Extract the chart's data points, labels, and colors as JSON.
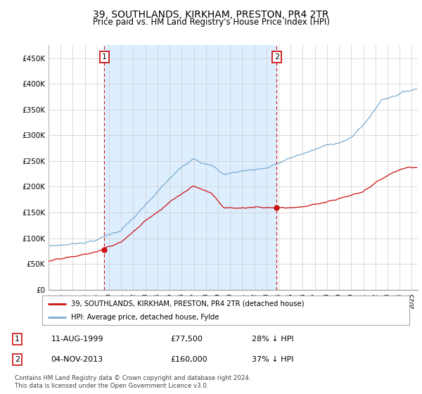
{
  "title": "39, SOUTHLANDS, KIRKHAM, PRESTON, PR4 2TR",
  "subtitle": "Price paid vs. HM Land Registry's House Price Index (HPI)",
  "ylabel_ticks": [
    "£0",
    "£50K",
    "£100K",
    "£150K",
    "£200K",
    "£250K",
    "£300K",
    "£350K",
    "£400K",
    "£450K"
  ],
  "ytick_values": [
    0,
    50000,
    100000,
    150000,
    200000,
    250000,
    300000,
    350000,
    400000,
    450000
  ],
  "ylim": [
    0,
    475000
  ],
  "xlim_start": 1995.0,
  "xlim_end": 2025.5,
  "hpi_color": "#7aabcf",
  "price_color": "#cc1111",
  "annotation_color": "#cc1111",
  "dashed_color": "#cc1111",
  "shade_color": "#ddeeff",
  "transaction1_date": 1999.61,
  "transaction1_price": 77500,
  "transaction2_date": 2013.84,
  "transaction2_price": 160000,
  "legend_line1": "39, SOUTHLANDS, KIRKHAM, PRESTON, PR4 2TR (detached house)",
  "legend_line2": "HPI: Average price, detached house, Fylde",
  "table_row1": [
    "1",
    "11-AUG-1999",
    "£77,500",
    "28% ↓ HPI"
  ],
  "table_row2": [
    "2",
    "04-NOV-2013",
    "£160,000",
    "37% ↓ HPI"
  ],
  "footer": "Contains HM Land Registry data © Crown copyright and database right 2024.\nThis data is licensed under the Open Government Licence v3.0.",
  "background_color": "#ffffff",
  "grid_color": "#cccccc"
}
